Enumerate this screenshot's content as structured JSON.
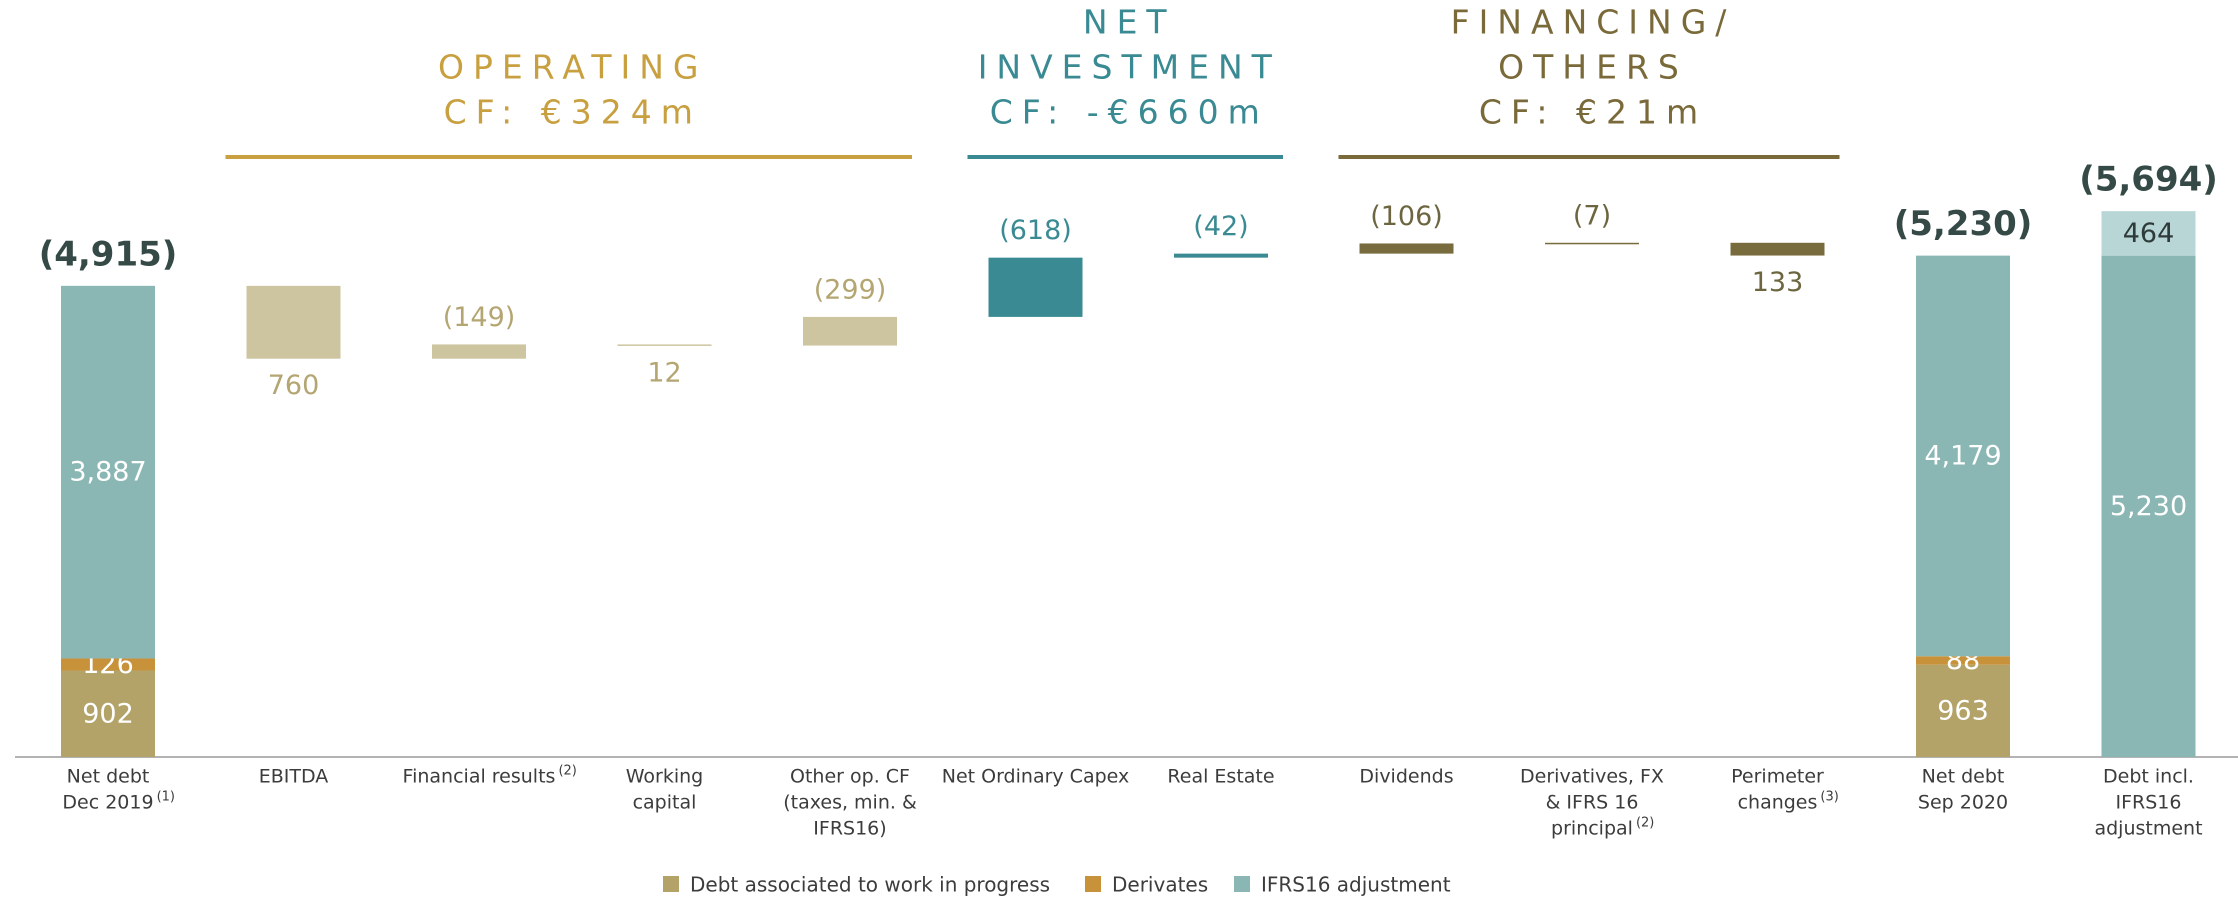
{
  "chart_data": {
    "type": "waterfall",
    "categories": [
      [
        "Net debt",
        "Dec 2019"
      ],
      [
        "EBITDA"
      ],
      [
        "Financial results"
      ],
      [
        "Working",
        "capital"
      ],
      [
        "Other op. CF",
        "(taxes, min. &",
        "IFRS16)"
      ],
      [
        "Net Ordinary Capex"
      ],
      [
        "Real Estate"
      ],
      [
        "Dividends"
      ],
      [
        "Derivatives, FX",
        "& IFRS 16",
        "principal"
      ],
      [
        "Perimeter",
        "changes"
      ],
      [
        "Net debt",
        "Sep 2020"
      ],
      [
        "Debt incl.",
        "IFRS16",
        "adjustment"
      ]
    ],
    "category_notes": [
      "(1)",
      null,
      "(2)",
      null,
      null,
      null,
      null,
      null,
      "(2)",
      "(3)",
      null,
      null
    ],
    "series": [
      {
        "name": "Debt associated to work in progress",
        "color": "#b3a368",
        "values": [
          902,
          null,
          null,
          null,
          null,
          null,
          null,
          null,
          null,
          null,
          963,
          null
        ],
        "value_labels": [
          "902",
          null,
          null,
          null,
          null,
          null,
          null,
          null,
          null,
          null,
          "963",
          null
        ]
      },
      {
        "name": "Derivates",
        "color": "#c8923a",
        "values": [
          126,
          null,
          null,
          null,
          null,
          null,
          null,
          null,
          null,
          null,
          88,
          null
        ],
        "value_labels": [
          "126",
          null,
          null,
          null,
          null,
          null,
          null,
          null,
          null,
          null,
          "88",
          null
        ]
      },
      {
        "name": "IFRS16 adjustment",
        "color": "#8ab6b4",
        "values": [
          3887,
          null,
          null,
          null,
          null,
          null,
          null,
          null,
          null,
          null,
          4179,
          5230
        ],
        "value_labels": [
          "3,887",
          null,
          null,
          null,
          null,
          null,
          null,
          null,
          null,
          null,
          "4,179",
          "5,230"
        ]
      }
    ],
    "adjustment_values": [
      null,
      null,
      null,
      null,
      null,
      null,
      null,
      null,
      null,
      null,
      null,
      464
    ],
    "adjustment_color": "#b8d6d6",
    "steps": [
      null,
      760,
      -149,
      12,
      -299,
      -618,
      -42,
      -106,
      -7,
      133,
      null,
      null
    ],
    "step_labels": [
      null,
      "760",
      "(149)",
      "12",
      "(299)",
      "(618)",
      "(42)",
      "(106)",
      "(7)",
      "133",
      null,
      null
    ],
    "step_colors": [
      null,
      "#cdc5a0",
      "#cdc5a0",
      "#cdc5a0",
      "#cdc5a0",
      "#3a8a93",
      "#3a8a93",
      "#786c3e",
      "#786c3e",
      "#786c3e",
      null,
      null
    ],
    "step_label_colors": [
      null,
      "#b4a672",
      "#b4a672",
      "#b4a672",
      "#b4a672",
      "#3a8a93",
      "#3a8a93",
      "#6c6640",
      "#6c6640",
      "#6c6640",
      null,
      null
    ],
    "totals": [
      -4915,
      null,
      null,
      null,
      null,
      null,
      null,
      null,
      null,
      null,
      -5230,
      -5694
    ],
    "total_labels": [
      "(4,915)",
      null,
      null,
      null,
      null,
      null,
      null,
      null,
      null,
      null,
      "(5,230)",
      "(5,694)"
    ],
    "total_color": "#354a46",
    "groups": [
      {
        "title": [
          "OPERATING",
          "CF: €324m"
        ],
        "color": "#c9a040"
      },
      {
        "title": [
          "NET",
          "INVESTMENT",
          "CF: -€660m"
        ],
        "color": "#3a8a93"
      },
      {
        "title": [
          "FINANCING/",
          "OTHERS",
          "CF: €21m"
        ],
        "color": "#7a6a3a"
      }
    ],
    "ylim": [
      0,
      5800
    ]
  }
}
